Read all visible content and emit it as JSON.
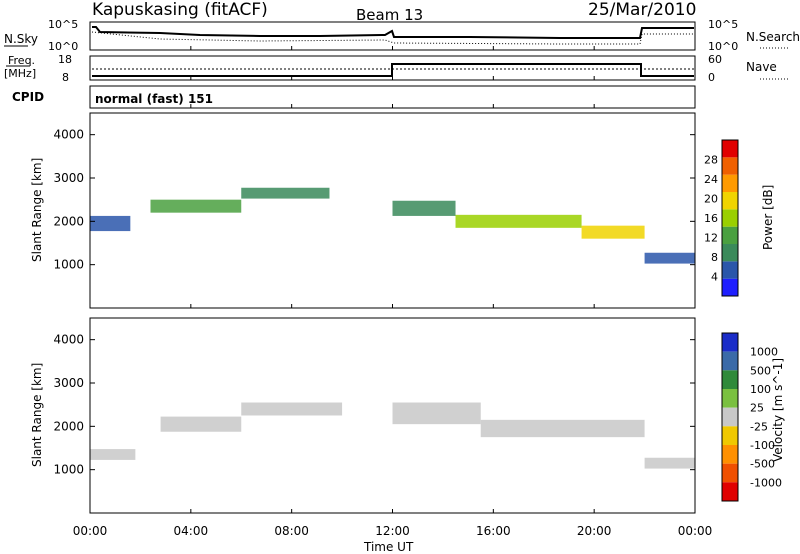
{
  "header": {
    "title": "Kapuskasing (fitACF)",
    "beam": "Beam 13",
    "date": "25/Mar/2010"
  },
  "noise_panel": {
    "left_label": "N.Sky",
    "left_ticks": [
      "10^5",
      "10^0"
    ],
    "right_ticks": [
      "10^5",
      "10^0"
    ],
    "right_label": "N.Search",
    "right_label_style": "dotted"
  },
  "freq_panel": {
    "left_label_1": "Freq.",
    "left_label_2": "[MHz]",
    "left_ticks": [
      "18",
      "8"
    ],
    "right_ticks": [
      "60",
      "0"
    ],
    "right_label": "Nave",
    "right_label_style": "dotted"
  },
  "cpid_panel": {
    "label": "CPID",
    "value": "normal (fast) 151"
  },
  "x_axis": {
    "title": "Time UT",
    "tick_labels": [
      "00:00",
      "04:00",
      "08:00",
      "12:00",
      "16:00",
      "20:00",
      "00:00"
    ]
  },
  "colors": {
    "power": [
      "#1f1fff",
      "#2a56aa",
      "#3a8a5a",
      "#4aa040",
      "#9ad000",
      "#f0d400",
      "#ff9a00",
      "#f06000",
      "#e00000"
    ],
    "velocity": [
      "#1a2cc8",
      "#3a6aa8",
      "#2f8a3a",
      "#7ac040",
      "#c8c8c8",
      "#f0c800",
      "#ff9000",
      "#f05000",
      "#e00000"
    ],
    "ground_scatter": "#c8c8c8"
  },
  "chart_data": [
    {
      "type": "heatmap",
      "name": "Power",
      "ylabel": "Slant Range [km]",
      "xlabel": "Time UT",
      "x_range_hours": [
        0,
        24
      ],
      "ylim": [
        0,
        4500
      ],
      "y_ticks": [
        1000,
        2000,
        3000,
        4000
      ],
      "colorbar": {
        "title": "Power [dB]",
        "range": [
          0,
          32
        ],
        "tick_values": [
          4,
          8,
          12,
          16,
          20,
          24,
          28
        ],
        "tick_labels": [
          "4",
          "8",
          "12",
          "16",
          "20",
          "24",
          "28"
        ]
      },
      "echo_bands": [
        {
          "t_start": 0.0,
          "t_end": 1.6,
          "center_km": 1950,
          "width_km": 350,
          "power_db": 6
        },
        {
          "t_start": 2.4,
          "t_end": 6.0,
          "center_km": 2350,
          "width_km": 300,
          "power_db": 12
        },
        {
          "t_start": 6.0,
          "t_end": 9.5,
          "center_km": 2650,
          "width_km": 250,
          "power_db": 9
        },
        {
          "t_start": 12.0,
          "t_end": 14.5,
          "center_km": 2300,
          "width_km": 350,
          "power_db": 10
        },
        {
          "t_start": 14.5,
          "t_end": 19.5,
          "center_km": 2000,
          "width_km": 300,
          "power_db": 16
        },
        {
          "t_start": 19.5,
          "t_end": 22.0,
          "center_km": 1750,
          "width_km": 300,
          "power_db": 20
        },
        {
          "t_start": 22.0,
          "t_end": 24.0,
          "center_km": 1150,
          "width_km": 250,
          "power_db": 6
        }
      ]
    },
    {
      "type": "heatmap",
      "name": "Velocity",
      "ylabel": "Slant Range [km]",
      "xlabel": "Time UT",
      "x_range_hours": [
        0,
        24
      ],
      "ylim": [
        0,
        4500
      ],
      "y_ticks": [
        1000,
        2000,
        3000,
        4000
      ],
      "colorbar": {
        "title": "Velocity [m s^-1]",
        "tick_labels": [
          "1000",
          "500",
          "100",
          "25",
          "-25",
          "-100",
          "-500",
          "-1000"
        ]
      },
      "echo_bands": [
        {
          "t_start": 0.0,
          "t_end": 1.8,
          "center_km": 1350,
          "width_km": 250,
          "class": "ground_scatter"
        },
        {
          "t_start": 2.8,
          "t_end": 6.0,
          "center_km": 2050,
          "width_km": 350,
          "class": "ground_scatter"
        },
        {
          "t_start": 6.0,
          "t_end": 10.0,
          "center_km": 2400,
          "width_km": 300,
          "class": "ground_scatter"
        },
        {
          "t_start": 12.0,
          "t_end": 15.5,
          "center_km": 2300,
          "width_km": 500,
          "class": "ground_scatter"
        },
        {
          "t_start": 15.5,
          "t_end": 22.0,
          "center_km": 1950,
          "width_km": 400,
          "class": "ground_scatter"
        },
        {
          "t_start": 22.0,
          "t_end": 24.0,
          "center_km": 1150,
          "width_km": 250,
          "class": "ground_scatter"
        }
      ]
    }
  ]
}
